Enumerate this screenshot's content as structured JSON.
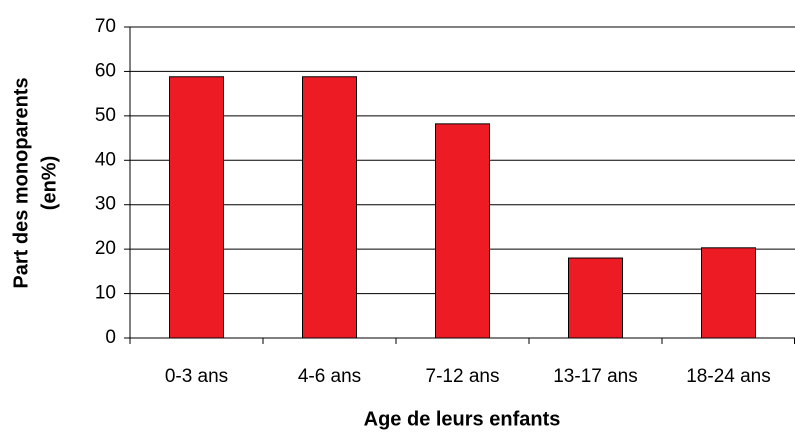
{
  "chart_data": {
    "type": "bar",
    "x_label": "Age de leurs enfants",
    "y_label": [
      "Part des monoparents",
      "(en%)"
    ],
    "categories": [
      "0-3 ans",
      "4-6 ans",
      "7-12 ans",
      "13-17 ans",
      "18-24 ans"
    ],
    "values": [
      58.8,
      58.8,
      48.2,
      18,
      20.3
    ],
    "color": "#ed1c24",
    "ylim": [
      0,
      70
    ],
    "yticks": [
      0,
      10,
      20,
      30,
      40,
      50,
      60,
      70
    ],
    "grid": true
  }
}
